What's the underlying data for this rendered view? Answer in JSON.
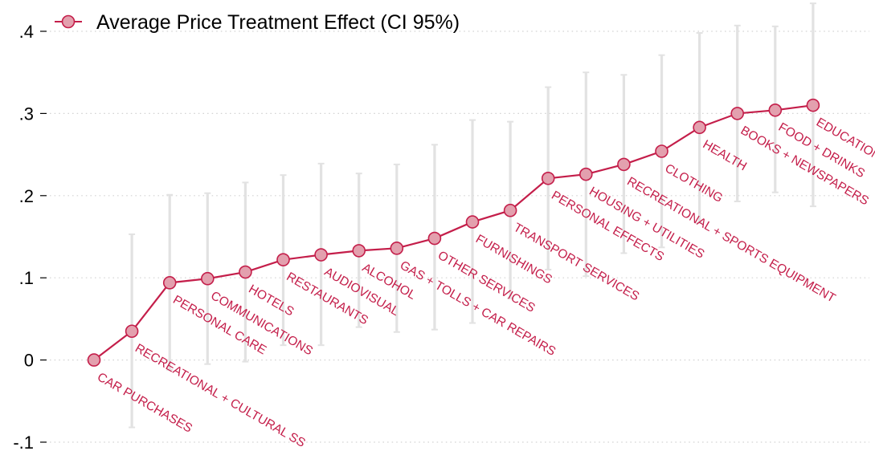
{
  "chart_data": {
    "type": "line",
    "title": "",
    "xlabel": "",
    "ylabel": "",
    "ylim": [
      -0.1,
      0.4
    ],
    "yticks": [
      {
        "value": 0.4,
        "label": ".4"
      },
      {
        "value": 0.3,
        "label": ".3"
      },
      {
        "value": 0.2,
        "label": ".2"
      },
      {
        "value": 0.1,
        "label": ".1"
      },
      {
        "value": 0,
        "label": "0"
      },
      {
        "value": -0.1,
        "label": "-.1"
      }
    ],
    "grid": true,
    "legend": {
      "position": "top-left",
      "entries": [
        "Average Price Treatment Effect (CI 95%)"
      ]
    },
    "series": [
      {
        "name": "Average Price Treatment Effect (CI 95%)",
        "color": "#c41e4a",
        "marker_fill": "#e3a0ae",
        "ci_color": "#e2e2e2",
        "points": [
          {
            "category": "CAR PURCHASES",
            "value": 0.0,
            "ci_low": 0.0,
            "ci_high": 0.0
          },
          {
            "category": "RECREATIONAL + CULTURAL SS",
            "value": 0.035,
            "ci_low": -0.082,
            "ci_high": 0.153
          },
          {
            "category": "PERSONAL CARE",
            "value": 0.094,
            "ci_low": -0.012,
            "ci_high": 0.201
          },
          {
            "category": "COMMUNICATIONS",
            "value": 0.099,
            "ci_low": -0.005,
            "ci_high": 0.203
          },
          {
            "category": "HOTELS",
            "value": 0.107,
            "ci_low": -0.002,
            "ci_high": 0.216
          },
          {
            "category": "RESTAURANTS",
            "value": 0.122,
            "ci_low": 0.018,
            "ci_high": 0.225
          },
          {
            "category": "AUDIOVISUAL",
            "value": 0.128,
            "ci_low": 0.018,
            "ci_high": 0.239
          },
          {
            "category": "ALCOHOL",
            "value": 0.133,
            "ci_low": 0.04,
            "ci_high": 0.227
          },
          {
            "category": "GAS + TOLLS + CAR REPAIRS",
            "value": 0.136,
            "ci_low": 0.034,
            "ci_high": 0.238
          },
          {
            "category": "OTHER SERVICES",
            "value": 0.148,
            "ci_low": 0.037,
            "ci_high": 0.262
          },
          {
            "category": "FURNISHINGS",
            "value": 0.168,
            "ci_low": 0.045,
            "ci_high": 0.292
          },
          {
            "category": "TRANSPORT SERVICES",
            "value": 0.182,
            "ci_low": 0.075,
            "ci_high": 0.29
          },
          {
            "category": "PERSONAL EFFECTS",
            "value": 0.221,
            "ci_low": 0.11,
            "ci_high": 0.332
          },
          {
            "category": "HOUSING + UTILITIES",
            "value": 0.226,
            "ci_low": 0.102,
            "ci_high": 0.35
          },
          {
            "category": "RECREATIONAL + SPORTS EQUIPMENT",
            "value": 0.238,
            "ci_low": 0.13,
            "ci_high": 0.347
          },
          {
            "category": "CLOTHING",
            "value": 0.254,
            "ci_low": 0.137,
            "ci_high": 0.371
          },
          {
            "category": "HEALTH",
            "value": 0.283,
            "ci_low": 0.167,
            "ci_high": 0.398
          },
          {
            "category": "BOOKS + NEWSPAPERS",
            "value": 0.3,
            "ci_low": 0.193,
            "ci_high": 0.407
          },
          {
            "category": "FOOD + DRINKS",
            "value": 0.304,
            "ci_low": 0.204,
            "ci_high": 0.406
          },
          {
            "category": "EDUCATION",
            "value": 0.31,
            "ci_low": 0.187,
            "ci_high": 0.434
          }
        ]
      }
    ]
  }
}
